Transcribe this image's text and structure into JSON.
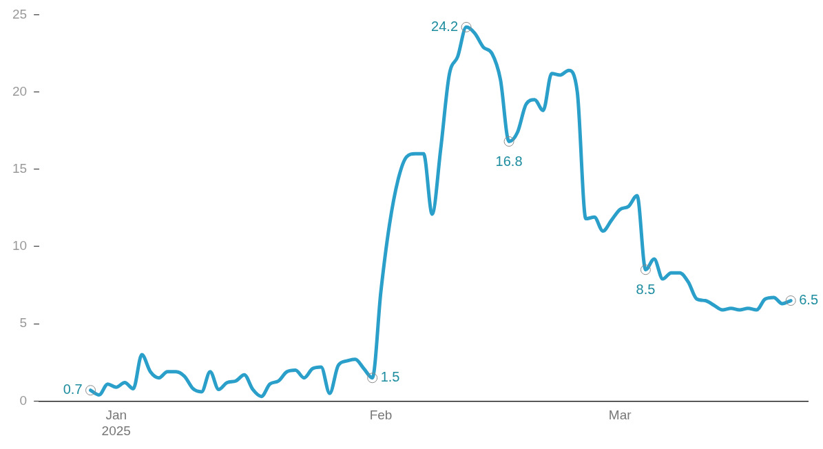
{
  "chart_data": {
    "type": "line",
    "x": [
      "2024-12-29",
      "2024-12-30",
      "2024-12-31",
      "2025-01-01",
      "2025-01-02",
      "2025-01-03",
      "2025-01-04",
      "2025-01-05",
      "2025-01-06",
      "2025-01-07",
      "2025-01-08",
      "2025-01-09",
      "2025-01-10",
      "2025-01-11",
      "2025-01-12",
      "2025-01-13",
      "2025-01-14",
      "2025-01-15",
      "2025-01-16",
      "2025-01-17",
      "2025-01-18",
      "2025-01-19",
      "2025-01-20",
      "2025-01-21",
      "2025-01-22",
      "2025-01-23",
      "2025-01-24",
      "2025-01-25",
      "2025-01-26",
      "2025-01-27",
      "2025-01-28",
      "2025-01-29",
      "2025-01-30",
      "2025-01-31",
      "2025-02-01",
      "2025-02-02",
      "2025-02-03",
      "2025-02-04",
      "2025-02-05",
      "2025-02-06",
      "2025-02-07",
      "2025-02-08",
      "2025-02-09",
      "2025-02-10",
      "2025-02-11",
      "2025-02-12",
      "2025-02-13",
      "2025-02-14",
      "2025-02-15",
      "2025-02-16",
      "2025-02-17",
      "2025-02-18",
      "2025-02-19",
      "2025-02-20",
      "2025-02-21",
      "2025-02-22",
      "2025-02-23",
      "2025-02-24",
      "2025-02-25",
      "2025-02-26",
      "2025-02-27",
      "2025-02-28",
      "2025-03-01",
      "2025-03-02",
      "2025-03-03",
      "2025-03-04",
      "2025-03-05",
      "2025-03-06",
      "2025-03-07",
      "2025-03-08",
      "2025-03-09",
      "2025-03-10",
      "2025-03-11",
      "2025-03-12",
      "2025-03-13",
      "2025-03-14",
      "2025-03-15",
      "2025-03-16",
      "2025-03-17",
      "2025-03-18",
      "2025-03-19",
      "2025-03-20",
      "2025-03-21"
    ],
    "series": [
      {
        "color": "#2a9fc9",
        "values": [
          0.7,
          0.4,
          1.1,
          0.9,
          1.2,
          0.8,
          3.0,
          1.9,
          1.5,
          1.9,
          1.9,
          1.6,
          0.8,
          0.6,
          1.9,
          0.75,
          1.2,
          1.3,
          1.7,
          0.75,
          0.3,
          1.1,
          1.3,
          1.9,
          2.0,
          1.5,
          2.1,
          2.2,
          0.5,
          2.3,
          2.6,
          2.7,
          2.1,
          1.5,
          7.1,
          11.4,
          14.3,
          15.8,
          16.0,
          16.0,
          12.1,
          16.3,
          21.1,
          22.3,
          24.2,
          23.8,
          22.9,
          22.5,
          20.8,
          16.8,
          17.4,
          19.2,
          19.5,
          18.8,
          21.2,
          21.1,
          21.4,
          20.0,
          11.8,
          11.9,
          11.0,
          11.7,
          12.4,
          12.6,
          13.3,
          8.5,
          9.2,
          7.9,
          8.3,
          8.3,
          7.7,
          6.6,
          6.5,
          6.2,
          5.9,
          6.0,
          5.9,
          6.0,
          5.9,
          6.6,
          6.7,
          6.3,
          6.5
        ],
        "value_labels": [
          "0.7",
          null,
          null,
          null,
          null,
          null,
          null,
          null,
          null,
          null,
          null,
          null,
          null,
          null,
          null,
          null,
          null,
          null,
          null,
          null,
          null,
          null,
          null,
          null,
          null,
          null,
          null,
          null,
          null,
          null,
          null,
          null,
          null,
          "1.5",
          null,
          null,
          null,
          null,
          null,
          null,
          null,
          null,
          null,
          null,
          "24.2",
          null,
          null,
          null,
          null,
          "16.8",
          null,
          null,
          null,
          null,
          null,
          null,
          null,
          null,
          null,
          null,
          null,
          null,
          null,
          null,
          null,
          "8.5",
          null,
          null,
          null,
          null,
          null,
          null,
          null,
          null,
          null,
          null,
          null,
          null,
          null,
          null,
          null,
          null,
          "6.5"
        ]
      }
    ],
    "xlim": [
      "2024-12-23",
      "2025-03-23"
    ],
    "xticks": [
      {
        "value": "2025-01-01",
        "label": "Jan\n2025"
      },
      {
        "value": "2025-02-01",
        "label": "Feb"
      },
      {
        "value": "2025-03-01",
        "label": "Mar"
      }
    ],
    "ylim": [
      0,
      25
    ],
    "yticks": [
      0,
      5,
      10,
      15,
      20,
      25
    ],
    "grid": false,
    "legend": false,
    "marker": "none",
    "line_style": "solid"
  }
}
